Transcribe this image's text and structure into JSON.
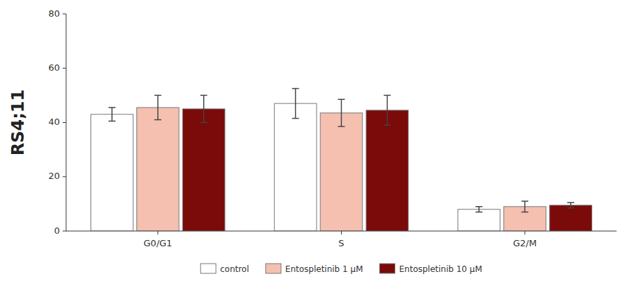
{
  "chart_data": {
    "type": "bar",
    "y_label": "RS4;11",
    "categories": [
      "G0/G1",
      "S",
      "G2/M"
    ],
    "series": [
      {
        "name": "control",
        "color": "#ffffff",
        "values": [
          43.0,
          47.0,
          8.0
        ],
        "errors": [
          2.5,
          5.5,
          1.0
        ]
      },
      {
        "name": "Entospletinib 1 μM",
        "color": "#f5c0b0",
        "values": [
          45.5,
          43.5,
          9.0
        ],
        "errors": [
          4.5,
          5.0,
          2.0
        ]
      },
      {
        "name": "Entospletinib 10 μM",
        "color": "#7b0a0a",
        "values": [
          45.0,
          44.5,
          9.5
        ],
        "errors": [
          5.0,
          5.5,
          1.0
        ]
      }
    ],
    "ylim": [
      0,
      80
    ],
    "yticks": [
      0,
      20,
      40,
      60,
      80
    ],
    "grid": false,
    "legend": "bottom"
  }
}
